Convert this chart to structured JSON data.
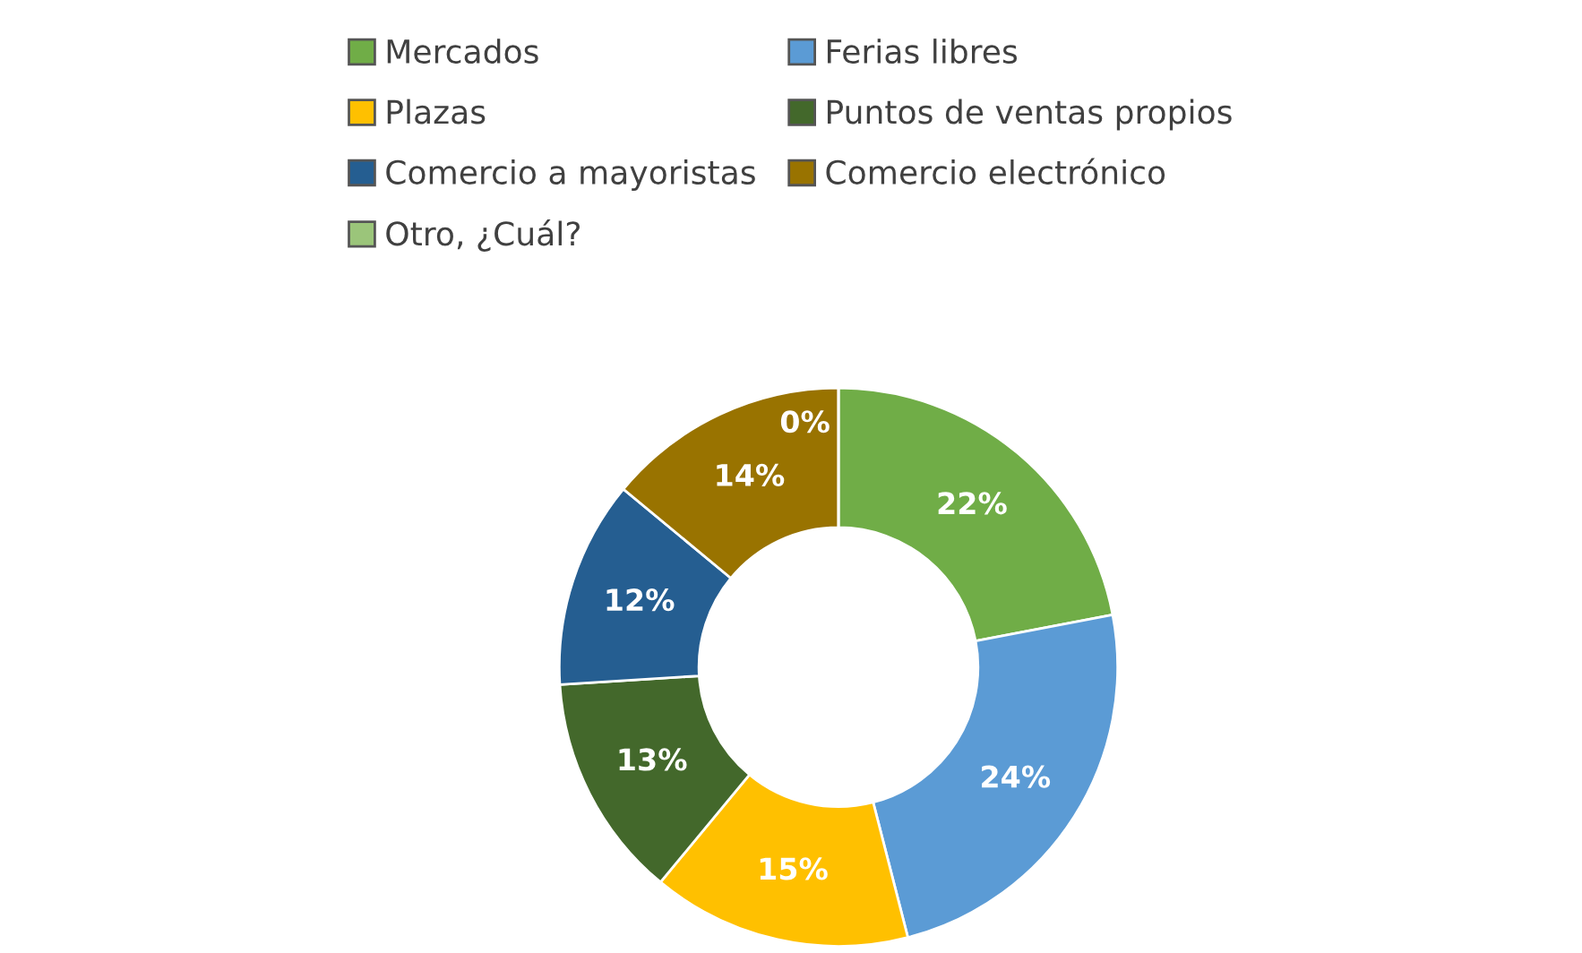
{
  "chart_data": {
    "type": "donut",
    "categories": [
      "Mercados",
      "Ferias libres",
      "Plazas",
      "Puntos de ventas propios",
      "Comercio a mayoristas",
      "Comercio electrónico",
      "Otro, ¿Cuál?"
    ],
    "values": [
      22,
      24,
      15,
      13,
      12,
      14,
      0
    ],
    "colors": [
      "#70ad47",
      "#5b9bd5",
      "#ffc000",
      "#43682b",
      "#255e91",
      "#997300",
      "#9bc57a"
    ],
    "value_labels": [
      "22%",
      "24%",
      "15%",
      "13%",
      "12%",
      "14%",
      "0%"
    ],
    "legend": "top"
  }
}
